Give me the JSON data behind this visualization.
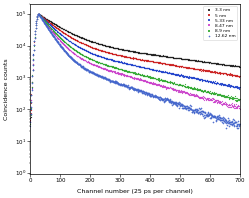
{
  "title": "",
  "xlabel": "Channel number (25 ps per channel)",
  "ylabel": "Coincidence counts",
  "xlim": [
    0,
    700
  ],
  "ylim_log": [
    0.9,
    200000.0
  ],
  "series": [
    {
      "label": "3.3 nm",
      "color": "#222222",
      "marker": "s",
      "tau1": 60,
      "tau2": 350,
      "amp1": 0.85,
      "amp2": 0.15,
      "bg": 8.0
    },
    {
      "label": "5 nm",
      "color": "#cc2222",
      "marker": "s",
      "tau1": 50,
      "tau2": 280,
      "amp1": 0.88,
      "amp2": 0.12,
      "bg": 3.5
    },
    {
      "label": "5.33 nm",
      "color": "#2244cc",
      "marker": "s",
      "tau1": 42,
      "tau2": 220,
      "amp1": 0.9,
      "amp2": 0.1,
      "bg": 2.5
    },
    {
      "label": "8.47 nm",
      "color": "#cc44cc",
      "marker": "s",
      "tau1": 32,
      "tau2": 160,
      "amp1": 0.93,
      "amp2": 0.07,
      "bg": 8.0
    },
    {
      "label": "8.9 nm",
      "color": "#33aa33",
      "marker": "s",
      "tau1": 36,
      "tau2": 180,
      "amp1": 0.92,
      "amp2": 0.08,
      "bg": 4.0
    },
    {
      "label": "12.62 nm",
      "color": "#4466cc",
      "marker": "+",
      "tau1": 28,
      "tau2": 130,
      "amp1": 0.95,
      "amp2": 0.05,
      "bg": 2.0
    }
  ],
  "peak_channel": 28,
  "peak_counts": 100000,
  "rise_sigma": 7,
  "n_channels": 700
}
